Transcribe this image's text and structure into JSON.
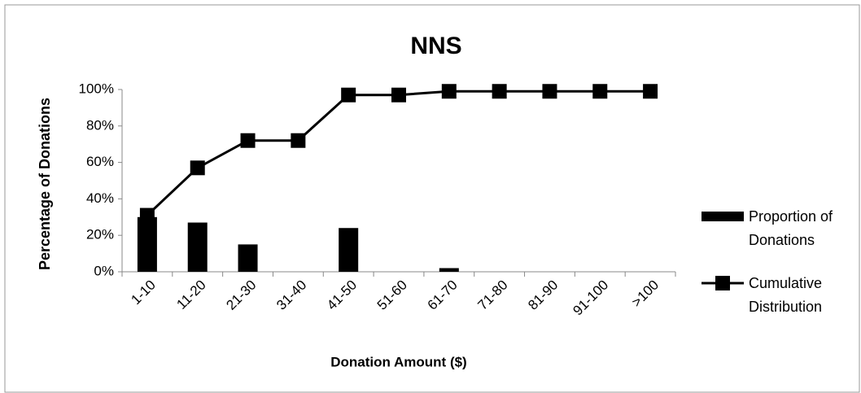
{
  "chart_data": {
    "type": "bar_line",
    "title": "NNS",
    "x_label": "Donation Amount ($)",
    "y_label": "Percentage of Donations",
    "categories": [
      "1-10",
      "11-20",
      "21-30",
      "31-40",
      "41-50",
      "51-60",
      "61-70",
      "71-80",
      "81-90",
      "91-100",
      ">100"
    ],
    "series": [
      {
        "name": "Proportion of Donations",
        "type": "bar",
        "color": "#000000",
        "values": [
          30,
          27,
          15,
          0,
          24,
          0,
          2,
          0,
          0,
          0,
          0
        ]
      },
      {
        "name": "Cumulative Distribution",
        "type": "line",
        "color": "#000000",
        "values": [
          31,
          57,
          72,
          72,
          97,
          97,
          99,
          99,
          99,
          99,
          99
        ]
      }
    ],
    "ylim": [
      0,
      100
    ],
    "yticks": [
      {
        "value": 0,
        "label": "0%"
      },
      {
        "value": 20,
        "label": "20%"
      },
      {
        "value": 40,
        "label": "40%"
      },
      {
        "value": 60,
        "label": "60%"
      },
      {
        "value": 80,
        "label": "80%"
      },
      {
        "value": 100,
        "label": "100%"
      }
    ],
    "legend": "right",
    "grid": false
  }
}
